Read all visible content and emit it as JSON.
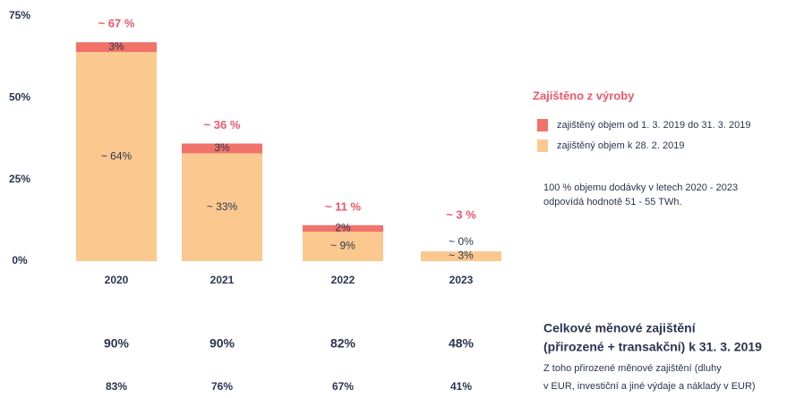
{
  "chart_data": {
    "type": "bar",
    "stacked": true,
    "categories": [
      "2020",
      "2021",
      "2022",
      "2023"
    ],
    "series": [
      {
        "name": "zajištěný objem k 28. 2. 2019",
        "color": "#fbc98f",
        "values": [
          64,
          33,
          9,
          3
        ],
        "value_labels": [
          "~ 64%",
          "~ 33%",
          "~ 9%",
          "~ 3%"
        ]
      },
      {
        "name": "zajištěný objem od 1. 3. 2019 do 31. 3. 2019",
        "color": "#f07269",
        "values": [
          3,
          3,
          2,
          0
        ],
        "value_labels": [
          "3%",
          "3%",
          "2%",
          "~ 0%"
        ]
      }
    ],
    "total_labels": [
      "~ 67 %",
      "~ 36 %",
      "~ 11 %",
      "~ 3 %"
    ],
    "ylim": [
      0,
      75
    ],
    "yticks": [
      {
        "value": 0,
        "label": "0%"
      },
      {
        "value": 25,
        "label": "25%"
      },
      {
        "value": 50,
        "label": "50%"
      },
      {
        "value": 75,
        "label": "75%"
      }
    ],
    "legend_title": "Zajištěno z výroby",
    "note": [
      "100 % objemu dodávky v letech 2020 - 2023",
      "odpovídá hodnotě 51 - 55 TWh."
    ]
  },
  "table": {
    "rows": [
      {
        "title": [
          "Celkové měnové zajištění",
          "(přirozené + transakční) k 31. 3. 2019"
        ],
        "values": [
          "90%",
          "90%",
          "82%",
          "48%"
        ]
      },
      {
        "title": [
          "Z toho přirozené měnové zajištění (dluhy",
          "v EUR, investiční a jiné výdaje a náklady v EUR)"
        ],
        "values": [
          "83%",
          "76%",
          "67%",
          "41%"
        ]
      }
    ]
  }
}
